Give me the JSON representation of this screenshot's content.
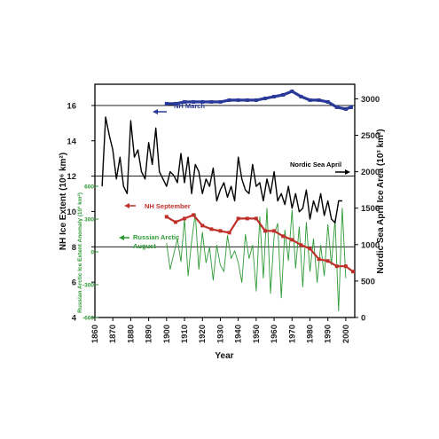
{
  "chart_data": {
    "type": "line",
    "xlabel": "Year",
    "x_ticks": [
      1860,
      1870,
      1880,
      1890,
      1900,
      1910,
      1920,
      1930,
      1940,
      1950,
      1960,
      1970,
      1980,
      1990,
      2000
    ],
    "xlim": [
      1860,
      2005
    ],
    "y_left": {
      "label": "NH Ice Extent (10⁶ km²)",
      "ticks": [
        4,
        6,
        8,
        10,
        12,
        14,
        16
      ],
      "lim": [
        4,
        17.2
      ]
    },
    "y_inner": {
      "label": "Russian Arctic Ice Extent Anomaly (10³ km²)",
      "ticks": [
        -600,
        -300,
        0,
        300,
        600
      ],
      "lim": [
        -600,
        600
      ],
      "color": "#2e9a35"
    },
    "y_right": {
      "label": "Nordic Sea April Ice Area (10³ km²)",
      "ticks": [
        0,
        500,
        1000,
        1500,
        2000,
        2500,
        3000
      ],
      "lim": [
        0,
        3200
      ]
    },
    "grid_y": [
      8,
      12,
      16
    ],
    "annotations": [
      {
        "text": "NH March",
        "color": "#2a3a9a",
        "arrow": "left"
      },
      {
        "text": "Nordic Sea April",
        "color": "#000000",
        "arrow": "right"
      },
      {
        "text": "NH September",
        "color": "#c0302a",
        "arrow": "left"
      },
      {
        "text": "Russian Arctic",
        "color": "#2e9a35",
        "arrow": "left"
      },
      {
        "text": "August",
        "color": "#2e9a35"
      }
    ],
    "series": [
      {
        "name": "NH March",
        "axis": "left",
        "color": "#2a3a9a",
        "x": [
          1900,
          1905,
          1910,
          1915,
          1920,
          1925,
          1930,
          1935,
          1940,
          1945,
          1950,
          1955,
          1960,
          1965,
          1970,
          1975,
          1980,
          1985,
          1990,
          1995,
          2000,
          2003
        ],
        "y": [
          16.1,
          16.1,
          16.2,
          16.2,
          16.2,
          16.2,
          16.2,
          16.3,
          16.3,
          16.3,
          16.3,
          16.4,
          16.5,
          16.6,
          16.8,
          16.5,
          16.3,
          16.3,
          16.2,
          15.9,
          15.8,
          15.9
        ]
      },
      {
        "name": "Nordic Sea April",
        "axis": "right",
        "color": "#000000",
        "x": [
          1864,
          1866,
          1868,
          1870,
          1872,
          1874,
          1876,
          1878,
          1880,
          1882,
          1884,
          1886,
          1888,
          1890,
          1892,
          1894,
          1896,
          1898,
          1900,
          1902,
          1904,
          1906,
          1908,
          1910,
          1912,
          1914,
          1916,
          1918,
          1920,
          1922,
          1924,
          1926,
          1928,
          1930,
          1932,
          1934,
          1936,
          1938,
          1940,
          1942,
          1944,
          1946,
          1948,
          1950,
          1952,
          1954,
          1956,
          1958,
          1960,
          1962,
          1964,
          1966,
          1968,
          1970,
          1972,
          1974,
          1976,
          1978,
          1980,
          1982,
          1984,
          1986,
          1988,
          1990,
          1992,
          1994,
          1996,
          1998
        ],
        "y": [
          1800,
          2750,
          2500,
          2300,
          1900,
          2200,
          1800,
          1700,
          2700,
          2200,
          2300,
          2000,
          1900,
          2400,
          2100,
          2600,
          2000,
          1900,
          1800,
          2000,
          1950,
          1850,
          2250,
          1850,
          2200,
          1700,
          2100,
          2000,
          1700,
          1900,
          1800,
          2050,
          1600,
          1750,
          1850,
          1650,
          1800,
          1600,
          2200,
          1900,
          1750,
          1700,
          2100,
          1800,
          1850,
          1600,
          1900,
          1700,
          2000,
          1600,
          1700,
          1550,
          1800,
          1500,
          1700,
          1450,
          1500,
          1750,
          1350,
          1600,
          1450,
          1700,
          1400,
          1600,
          1350,
          1300,
          1600,
          1600
        ]
      },
      {
        "name": "NH September",
        "axis": "left",
        "color": "#c0302a",
        "x": [
          1900,
          1905,
          1910,
          1915,
          1920,
          1925,
          1930,
          1935,
          1940,
          1945,
          1950,
          1955,
          1960,
          1965,
          1970,
          1975,
          1980,
          1985,
          1990,
          1995,
          2000,
          2004
        ],
        "y": [
          9.7,
          9.4,
          9.6,
          9.8,
          9.2,
          9.0,
          8.9,
          8.8,
          9.6,
          9.6,
          9.6,
          8.9,
          8.9,
          8.6,
          8.4,
          8.1,
          7.9,
          7.3,
          7.2,
          6.9,
          6.9,
          6.6
        ]
      },
      {
        "name": "Russian Arctic August",
        "axis": "inner",
        "color": "#2e9a35",
        "x": [
          1900,
          1902,
          1904,
          1906,
          1908,
          1910,
          1912,
          1914,
          1916,
          1918,
          1920,
          1922,
          1924,
          1926,
          1928,
          1930,
          1932,
          1934,
          1936,
          1938,
          1940,
          1942,
          1944,
          1946,
          1948,
          1950,
          1952,
          1954,
          1956,
          1958,
          1960,
          1962,
          1964,
          1966,
          1968,
          1970,
          1972,
          1974,
          1976,
          1978,
          1980,
          1982,
          1984,
          1986,
          1988,
          1990,
          1992,
          1994,
          1996,
          1998,
          2000
        ],
        "y": [
          80,
          -160,
          -20,
          120,
          -90,
          300,
          -220,
          100,
          350,
          -160,
          180,
          -100,
          40,
          -260,
          60,
          -120,
          -180,
          150,
          -60,
          10,
          -100,
          -280,
          160,
          -60,
          60,
          -360,
          320,
          -240,
          400,
          -380,
          150,
          260,
          -420,
          200,
          -80,
          380,
          -150,
          230,
          -320,
          270,
          -180,
          120,
          -280,
          60,
          -220,
          250,
          -120,
          300,
          -540,
          400,
          -240
        ]
      }
    ]
  }
}
